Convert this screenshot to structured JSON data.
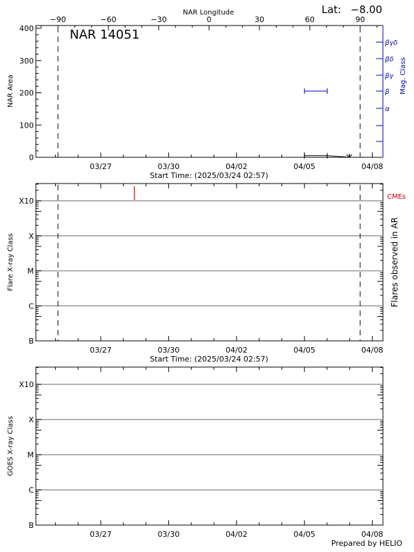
{
  "header": {
    "lat_label": "Lat:",
    "lat_value": "−8.00",
    "top_axis_title": "NAR Longitude",
    "region_title": "NAR 14051"
  },
  "footer": {
    "credit": "Prepared by HELIO"
  },
  "colors": {
    "axis": "#000000",
    "mag_class": "#0000cc",
    "cme": "#dd0000",
    "grid": "#999999"
  },
  "chart_data": [
    {
      "type": "line",
      "panel": "nar-area",
      "title": "NAR 14051",
      "xlabel": "Start Time: (2025/03/24 02:57)",
      "ylabel": "NAR Area",
      "y2label": "Mag. Class",
      "x2label": "NAR Longitude",
      "ylim": [
        0,
        400
      ],
      "yticks": [
        "0",
        "100",
        "200",
        "300",
        "400"
      ],
      "xticks": [
        "03/27",
        "03/30",
        "04/02",
        "04/05",
        "04/08"
      ],
      "x2ticks": [
        "−90",
        "−60",
        "−30",
        "0",
        "30",
        "60",
        "90"
      ],
      "y2ticks": [
        "α",
        "β",
        "βγ",
        "βδ",
        "βγδ"
      ],
      "vlines_longitude": [
        -90,
        90
      ],
      "series": [
        {
          "name": "NAR Area",
          "color": "#000000",
          "x": [
            "04/05",
            "04/06",
            "04/07"
          ],
          "values": [
            5,
            5,
            0
          ]
        },
        {
          "name": "Mag. Class",
          "color": "#0000cc",
          "x": [
            "04/05",
            "04/06"
          ],
          "values": [
            "β",
            "β"
          ]
        }
      ],
      "annotation": {
        "lat_label": "Lat:",
        "lat_value": "−8.00"
      }
    },
    {
      "type": "bar",
      "panel": "flares",
      "xlabel": "Start Time: (2025/03/24 02:57)",
      "ylabel": "Flare X-ray Class",
      "y2label": "Flares observed in AR",
      "yticks": [
        "B",
        "C",
        "M",
        "X",
        "X10"
      ],
      "xticks": [
        "03/27",
        "03/30",
        "04/02",
        "04/05",
        "04/08"
      ],
      "grid": true,
      "legend": [
        {
          "label": "CMEs",
          "color": "#dd0000"
        }
      ],
      "series": [
        {
          "name": "CMEs",
          "color": "#dd0000",
          "x": [
            "03/28 12:00"
          ],
          "values": [
            "X10+"
          ]
        }
      ]
    },
    {
      "type": "line",
      "panel": "goes",
      "ylabel": "GOES X-ray Class",
      "yticks": [
        "B",
        "C",
        "M",
        "X",
        "X10"
      ],
      "xticks": [
        "03/27",
        "03/30",
        "04/02",
        "04/05",
        "04/08"
      ],
      "grid": true,
      "series": []
    }
  ]
}
